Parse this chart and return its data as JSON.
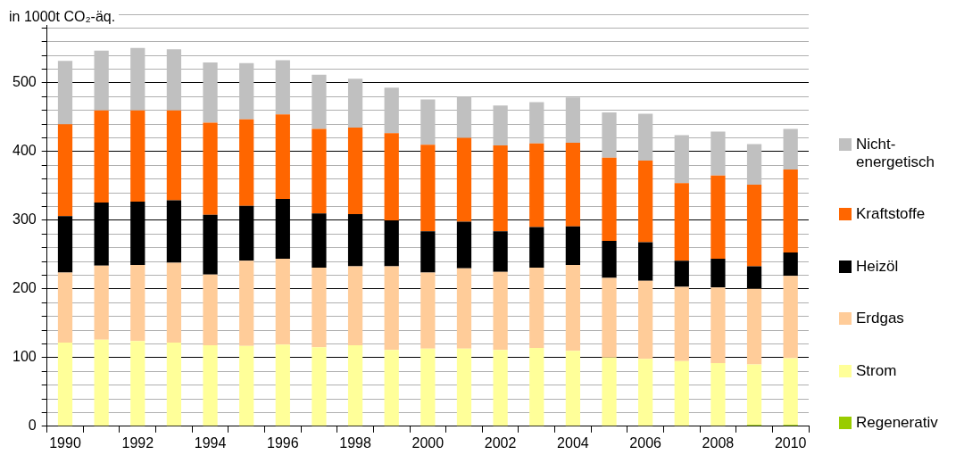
{
  "chart_data": {
    "type": "bar",
    "stacked": true,
    "ylabel": "in 1000t CO₂-äq.",
    "categories": [
      "1990",
      null,
      "1992",
      null,
      "1994",
      null,
      "1996",
      null,
      "1998",
      null,
      "2000",
      null,
      "2002",
      null,
      "2004",
      null,
      "2006",
      null,
      "2008",
      null,
      "2010"
    ],
    "series": [
      {
        "name": "Regenerativ",
        "color": "#99cc00",
        "values": [
          0,
          0,
          0,
          0,
          0,
          0,
          0,
          0,
          0,
          0,
          0,
          0,
          0,
          0,
          0,
          0,
          0,
          0,
          0,
          2,
          2
        ]
      },
      {
        "name": "Strom",
        "color": "#ffff99",
        "values": [
          122,
          126,
          124,
          122,
          118,
          117,
          119,
          115,
          118,
          111,
          113,
          113,
          111,
          114,
          110,
          100,
          98,
          95,
          92,
          88,
          97
        ]
      },
      {
        "name": "Erdgas",
        "color": "#ffcc99",
        "values": [
          102,
          108,
          111,
          116,
          103,
          124,
          125,
          116,
          115,
          122,
          111,
          117,
          114,
          117,
          125,
          116,
          114,
          108,
          110,
          110,
          120
        ]
      },
      {
        "name": "Heizöl",
        "color": "#000000",
        "values": [
          82,
          92,
          92,
          91,
          87,
          80,
          87,
          79,
          76,
          67,
          60,
          68,
          59,
          59,
          56,
          54,
          56,
          38,
          42,
          33,
          34
        ]
      },
      {
        "name": "Kraftstoffe",
        "color": "#ff6600",
        "values": [
          134,
          134,
          133,
          131,
          134,
          126,
          123,
          123,
          126,
          127,
          126,
          122,
          125,
          122,
          122,
          121,
          119,
          113,
          121,
          119,
          121
        ]
      },
      {
        "name": "Nicht-energetisch",
        "color": "#c0c0c0",
        "values": [
          92,
          87,
          91,
          89,
          88,
          82,
          79,
          79,
          71,
          66,
          66,
          60,
          58,
          60,
          66,
          66,
          68,
          70,
          64,
          59,
          59
        ]
      }
    ],
    "ylim": [
      0,
      600
    ],
    "yticks": [
      0,
      {
        "value": 20,
        "label": null
      },
      {
        "value": 40,
        "label": null
      },
      {
        "value": 60,
        "label": null
      },
      {
        "value": 80,
        "label": null
      },
      100,
      {
        "value": 120,
        "label": null
      },
      {
        "value": 140,
        "label": null
      },
      {
        "value": 160,
        "label": null
      },
      {
        "value": 180,
        "label": null
      },
      200,
      {
        "value": 220,
        "label": null
      },
      {
        "value": 240,
        "label": null
      },
      {
        "value": 260,
        "label": null
      },
      {
        "value": 280,
        "label": null
      },
      300,
      {
        "value": 320,
        "label": null
      },
      {
        "value": 340,
        "label": null
      },
      {
        "value": 360,
        "label": null
      },
      {
        "value": 380,
        "label": null
      },
      400,
      {
        "value": 420,
        "label": null
      },
      {
        "value": 440,
        "label": null
      },
      {
        "value": 460,
        "label": null
      },
      {
        "value": 480,
        "label": null
      },
      500,
      {
        "value": 520,
        "label": null
      },
      {
        "value": 540,
        "label": null
      },
      {
        "value": 560,
        "label": null
      },
      {
        "value": 580,
        "label": null
      },
      {
        "value": 600,
        "label": null
      }
    ],
    "grid": "y",
    "legend": "right"
  }
}
